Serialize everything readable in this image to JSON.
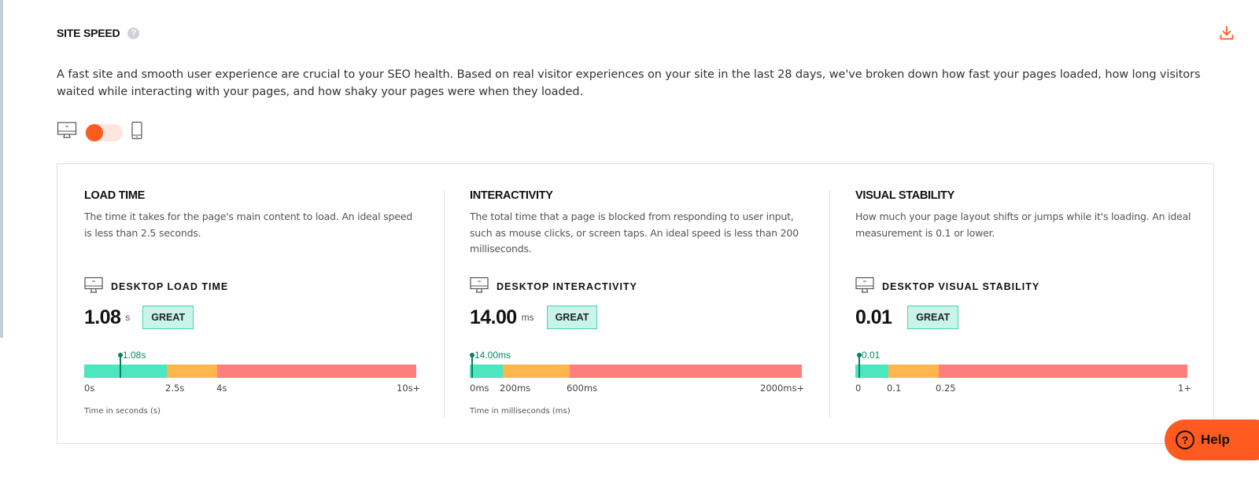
{
  "section": {
    "title": "SITE SPEED",
    "help_icon": "?",
    "download_icon": "download-icon",
    "intro": "A fast site and smooth user experience are crucial to your SEO health. Based on real visitor experiences on your site in the last 28 days, we've broken down how fast your pages loaded, how long visitors waited while interacting with your pages, and how shaky your pages were when they loaded."
  },
  "device_toggle": {
    "left_icon": "desktop-icon",
    "right_icon": "mobile-icon",
    "selected": "desktop"
  },
  "metrics": [
    {
      "title": "LOAD TIME",
      "description": "The time it takes for the page's main content to load. An ideal speed is less than 2.5 seconds.",
      "label": "DESKTOP LOAD TIME",
      "value": "1.08",
      "unit": "s",
      "badge": "GREAT",
      "marker_label": "1.08s",
      "marker_value": 1.08,
      "ticks": [
        "0s",
        "2.5s",
        "4s",
        "10s+"
      ],
      "axis_note": "Time in seconds (s)"
    },
    {
      "title": "INTERACTIVITY",
      "description": "The total time that a page is blocked from responding to user input, such as mouse clicks, or screen taps. An ideal speed is less than 200 milliseconds.",
      "label": "DESKTOP INTERACTIVITY",
      "value": "14.00",
      "unit": "ms",
      "badge": "GREAT",
      "marker_label": "14.00ms",
      "marker_value": 14.0,
      "ticks": [
        "0ms",
        "200ms",
        "600ms",
        "2000ms+"
      ],
      "axis_note": "Time in milliseconds (ms)"
    },
    {
      "title": "VISUAL STABILITY",
      "description": "How much your page layout shifts or jumps while it's loading. An ideal measurement is 0.1 or lower.",
      "label": "DESKTOP VISUAL STABILITY",
      "value": "0.01",
      "unit": "",
      "badge": "GREAT",
      "marker_label": "0.01",
      "marker_value": 0.01,
      "ticks": [
        "0",
        "0.1",
        "0.25",
        "1+"
      ],
      "axis_note": ""
    }
  ],
  "help": {
    "label": "Help",
    "icon": "?"
  },
  "colors": {
    "accent": "#ff5a1f",
    "great": "#4ce6bf",
    "needs_improvement": "#ffb74d",
    "poor": "#ff7d7d",
    "marker": "#0a7d5e"
  }
}
